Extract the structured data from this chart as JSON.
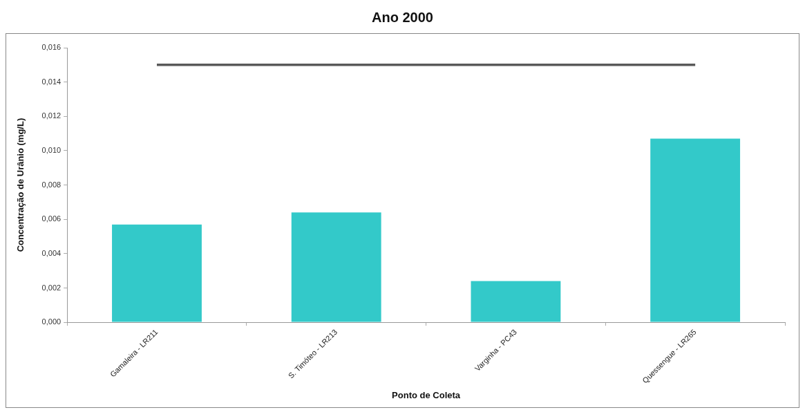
{
  "chart_data": {
    "type": "bar",
    "title": "Ano 2000",
    "xlabel": "Ponto de Coleta",
    "ylabel": "Concentração de Urânio (mg/L)",
    "categories": [
      "Gamaleira - LR211",
      "S. Timóteo - LR213",
      "Varginha - PC43",
      "Quessengue - LR265"
    ],
    "series": [
      {
        "color": "#33c9c9",
        "values": [
          0.0057,
          0.0064,
          0.0024,
          0.0107
        ]
      },
      {
        "type": "line",
        "color": "#595959",
        "values": [
          0.015,
          0.015,
          0.015,
          0.015
        ]
      }
    ],
    "ylim": [
      0,
      0.016
    ],
    "yticks": [
      {
        "value": 0,
        "label": "0,000"
      },
      {
        "value": 0.002,
        "label": "0,002"
      },
      {
        "value": 0.004,
        "label": "0,004"
      },
      {
        "value": 0.006,
        "label": "0,006"
      },
      {
        "value": 0.008,
        "label": "0,008"
      },
      {
        "value": 0.01,
        "label": "0,010"
      },
      {
        "value": 0.012,
        "label": "0,012"
      },
      {
        "value": 0.014,
        "label": "0,014"
      },
      {
        "value": 0.016,
        "label": "0,016"
      }
    ],
    "grid": false,
    "legend": false
  }
}
